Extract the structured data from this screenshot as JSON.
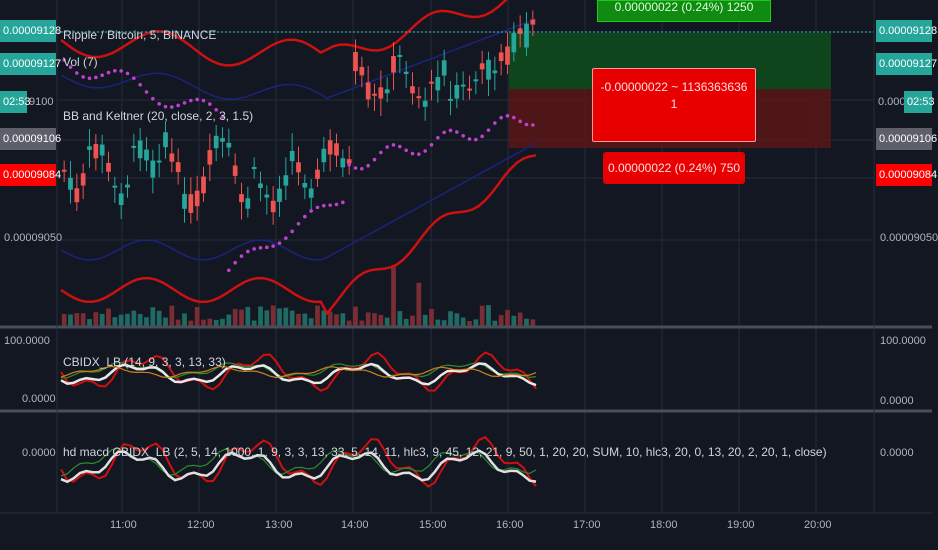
{
  "header": {
    "symbol_line": "Ripple / Bitcoin, 5, BINANCE",
    "vol_line": "Vol (7)",
    "bb_line": "BB and Keltner (20, close, 2, 3, 1.5)"
  },
  "pane2": {
    "title": "CBIDX_LB (14, 9, 3, 3, 13, 33)",
    "top_label": "100.0000",
    "bottom_label": "0.0000"
  },
  "pane3": {
    "title": "hd macd CBIDX_LB (2, 5, 14, 1000, 1, 9, 3, 3, 13, 33, 5, 14, 11, hlc3, 9, 45, 12, 21, 9, 50, 1, 20, 20, SUM, 10, hlc3, 20, 0, 13, 20, 2, 20, 1, close)",
    "zero_label": "0.0000"
  },
  "left_tags": [
    {
      "text": "0.00009128",
      "color": "#26a69a"
    },
    {
      "text": "0.00009127",
      "color": "#26a69a"
    },
    {
      "text": "02:53",
      "color": "#26a69a"
    },
    {
      "text": "9100",
      "color": "#131722"
    },
    {
      "text": "0.00009106",
      "color": "#5d606b"
    },
    {
      "text": "0.00009084",
      "color": "#ff0000"
    },
    {
      "text": "0.00009050",
      "color": "#131722"
    }
  ],
  "right_tags": [
    {
      "text": "0.00009128",
      "color": "#26a69a"
    },
    {
      "text": "0.00009127",
      "color": "#26a69a"
    },
    {
      "text": "0.000",
      "color": "#131722"
    },
    {
      "text": "02:53",
      "color": "#26a69a"
    },
    {
      "text": "0.00009106",
      "color": "#5d606b"
    },
    {
      "text": "0.00009084",
      "color": "#ff0000"
    },
    {
      "text": "0.00009050",
      "color": "#131722"
    }
  ],
  "right_pane2": {
    "top": "100.0000",
    "bottom": "0.0000"
  },
  "right_pane3": {
    "zero": "0.0000"
  },
  "position": {
    "target_label": "0.00000022 (0.24%) 1250",
    "center_label_line1": "-0.00000022 ~ 1136363636",
    "center_label_line2": "1",
    "stop_label": "0.00000022 (0.24%) 750"
  },
  "time_axis": [
    "11:00",
    "12:00",
    "13:00",
    "14:00",
    "15:00",
    "16:00",
    "17:00",
    "18:00",
    "19:00",
    "20:00"
  ],
  "colors": {
    "background": "#131722",
    "up": "#26a69a",
    "down": "#ef5350",
    "bb": "#cc1111",
    "keltner": "#1a237e",
    "dots": "#c040d0",
    "grid": "#262b3a",
    "target_green": "#0a8a0a",
    "stop_red": "#e00000"
  },
  "chart_data": {
    "type": "candlestick",
    "x": [
      "11:00",
      "12:00",
      "13:00",
      "14:00",
      "15:00",
      "16:00",
      "17:00",
      "18:00",
      "19:00",
      "20:00"
    ],
    "ylim": [
      9.02e-05,
      9.14e-05
    ],
    "price_ticks": [
      "0.00009050",
      "0.00009084",
      "0.00009106",
      "0.00009127",
      "0.00009128"
    ]
  }
}
